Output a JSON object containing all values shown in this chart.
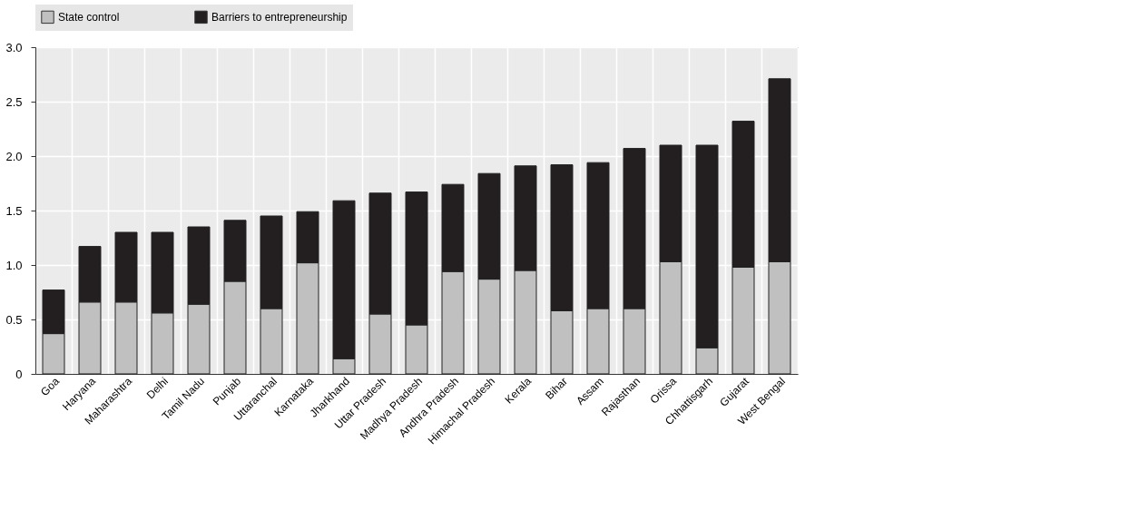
{
  "chart_data": {
    "type": "bar",
    "stacked": true,
    "categories": [
      "Goa",
      "Haryana",
      "Maharashtra",
      "Delhi",
      "Tamil Nadu",
      "Punjab",
      "Uttaranchal",
      "Karnataka",
      "Jharkhand",
      "Uttar Pradesh",
      "Madhya Pradesh",
      "Andhra Pradesh",
      "Himachal Pradesh",
      "Kerala",
      "Bihar",
      "Assam",
      "Rajasthan",
      "Orissa",
      "Chhattisgarh",
      "Gujarat",
      "West Bengal"
    ],
    "series": [
      {
        "name": "State control",
        "color": "#c0c0c0",
        "values": [
          0.37,
          0.66,
          0.66,
          0.56,
          0.64,
          0.85,
          0.6,
          1.02,
          0.14,
          0.55,
          0.45,
          0.94,
          0.87,
          0.95,
          0.58,
          0.6,
          0.6,
          1.03,
          0.24,
          0.98,
          1.03
        ]
      },
      {
        "name": "Barriers to entrepreneurship",
        "color": "#231f20",
        "values": [
          0.4,
          0.51,
          0.64,
          0.74,
          0.71,
          0.56,
          0.85,
          0.47,
          1.45,
          1.11,
          1.22,
          0.8,
          0.97,
          0.96,
          1.34,
          1.34,
          1.47,
          1.07,
          1.86,
          1.34,
          1.68
        ]
      }
    ],
    "ylim": [
      0,
      3.0
    ],
    "yticks": [
      {
        "value": 0,
        "label": "0"
      },
      {
        "value": 0.5,
        "label": "0.5"
      },
      {
        "value": 1.0,
        "label": "1.0"
      },
      {
        "value": 1.5,
        "label": "1.5"
      },
      {
        "value": 2.0,
        "label": "2.0"
      },
      {
        "value": 2.5,
        "label": "2.5"
      },
      {
        "value": 3.0,
        "label": "3.0"
      }
    ],
    "grid": true,
    "legend": "top"
  }
}
